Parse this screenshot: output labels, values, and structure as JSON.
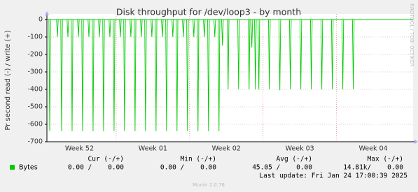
{
  "chart_data": {
    "type": "line",
    "title": "Disk throughput for /dev/loop3 - by month",
    "y_label": "Pr second read (-) / write (+)",
    "side_text": "RRDTOOL / TOBI OETIKER",
    "xlim": [
      0,
      34.9
    ],
    "ylim": [
      -700,
      0
    ],
    "yticks": [
      0,
      -100,
      -200,
      -300,
      -400,
      -500,
      -600,
      -700
    ],
    "xticks": [
      {
        "value": 3.1,
        "label": "Week 52"
      },
      {
        "value": 10.1,
        "label": "Week 01"
      },
      {
        "value": 17.1,
        "label": "Week 02"
      },
      {
        "value": 24.1,
        "label": "Week 03"
      },
      {
        "value": 31.1,
        "label": "Week 04"
      }
    ],
    "xgrid": [
      6.6,
      13.6,
      20.6,
      27.6
    ],
    "grid": true,
    "series": [
      {
        "name": "Bytes",
        "color": "#00cc00",
        "x": [
          0.27,
          1.0,
          1.4,
          2.0,
          2.4,
          3.0,
          3.4,
          4.0,
          4.4,
          5.0,
          5.4,
          6.0,
          6.4,
          7.0,
          7.4,
          8.0,
          8.4,
          9.0,
          9.4,
          10.0,
          10.4,
          11.0,
          11.4,
          12.0,
          12.4,
          13.0,
          13.4,
          14.0,
          14.4,
          15.0,
          15.4,
          16.0,
          16.4,
          16.73,
          17.27,
          18.27,
          19.27,
          19.53,
          19.87,
          20.2,
          21.2,
          22.2,
          23.2,
          24.2,
          25.2,
          26.2,
          27.2,
          28.2,
          29.2
        ],
        "values": [
          -640,
          -100,
          -640,
          -100,
          -640,
          -100,
          -640,
          -100,
          -640,
          -100,
          -640,
          -100,
          -640,
          -100,
          -640,
          -100,
          -640,
          -100,
          -640,
          -100,
          -640,
          -100,
          -640,
          -100,
          -640,
          -100,
          -640,
          -100,
          -640,
          -100,
          -640,
          -100,
          -640,
          -150,
          -400,
          -400,
          -400,
          -160,
          -400,
          -400,
          -400,
          -405,
          -400,
          -400,
          -400,
          -400,
          -400,
          -400,
          -400
        ]
      }
    ],
    "legend": {
      "headers": [
        "Cur (-/+)",
        "Min (-/+)",
        "Avg (-/+)",
        "Max (-/+)"
      ],
      "rows": [
        [
          "0.00 /    0.00",
          "0.00 /    0.00",
          "45.05 /    0.00",
          "14.81k/    0.00"
        ]
      ]
    },
    "last_update": "Last update: Fri Jan 24 17:00:39 2025",
    "footer": "Munin 2.0.76"
  }
}
